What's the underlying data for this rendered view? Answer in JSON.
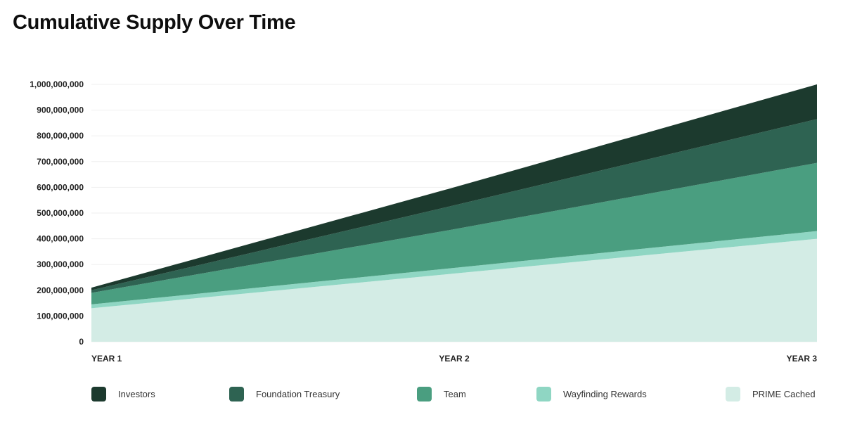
{
  "chart_data": {
    "type": "area",
    "stacked": true,
    "title": "Cumulative Supply Over Time",
    "xlabel": "",
    "ylabel": "",
    "categories": [
      "YEAR 1",
      "YEAR 2",
      "YEAR 3"
    ],
    "ylim": [
      0,
      1000000000
    ],
    "y_ticks": [
      "0",
      "100,000,000",
      "200,000,000",
      "300,000,000",
      "400,000,000",
      "500,000,000",
      "600,000,000",
      "700,000,000",
      "800,000,000",
      "900,000,000",
      "1,000,000,000"
    ],
    "grid": true,
    "legend_position": "bottom",
    "series": [
      {
        "name": "PRIME Cached",
        "color": "#d3ece5",
        "values": [
          130000000,
          265000000,
          400000000
        ]
      },
      {
        "name": "Wayfinding Rewards",
        "color": "#8fd6c3",
        "values": [
          15000000,
          22000000,
          30000000
        ]
      },
      {
        "name": "Team",
        "color": "#4a9e80",
        "values": [
          45000000,
          150000000,
          265000000
        ]
      },
      {
        "name": "Foundation Treasury",
        "color": "#2e6352",
        "values": [
          10000000,
          93000000,
          170000000
        ]
      },
      {
        "name": "Investors",
        "color": "#1c3a2e",
        "values": [
          10000000,
          70000000,
          135000000
        ]
      }
    ],
    "legend_order": [
      "Investors",
      "Foundation Treasury",
      "Team",
      "Wayfinding Rewards",
      "PRIME Cached"
    ]
  }
}
